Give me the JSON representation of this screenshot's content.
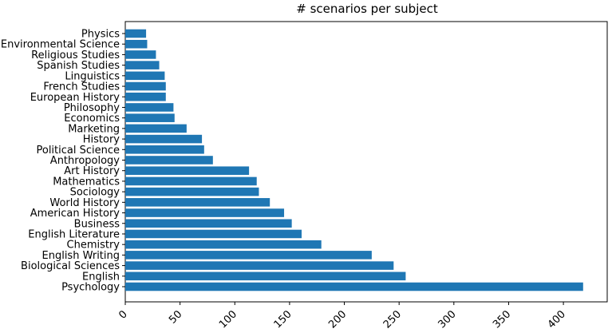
{
  "chart_data": {
    "type": "bar",
    "orientation": "horizontal",
    "title": "# scenarios per subject",
    "xlabel": "",
    "ylabel": "",
    "xlim": [
      0,
      440
    ],
    "xticks": [
      0,
      50,
      100,
      150,
      200,
      250,
      300,
      350,
      400
    ],
    "categories": [
      "Psychology",
      "English",
      "Biological Sciences",
      "English Writing",
      "Chemistry",
      "English Literature",
      "Business",
      "American History",
      "World History",
      "Sociology",
      "Mathematics",
      "Art History",
      "Anthropology",
      "Political Science",
      "History",
      "Marketing",
      "Economics",
      "Philosophy",
      "European History",
      "French Studies",
      "Linguistics",
      "Spanish Studies",
      "Religious Studies",
      "Environmental Science",
      "Physics"
    ],
    "values": [
      418,
      256,
      245,
      225,
      179,
      161,
      152,
      145,
      132,
      122,
      120,
      113,
      80,
      72,
      70,
      56,
      45,
      44,
      37,
      37,
      36,
      31,
      28,
      20,
      19
    ],
    "bar_color": "#1f77b4",
    "grid": false,
    "legend": "none"
  }
}
